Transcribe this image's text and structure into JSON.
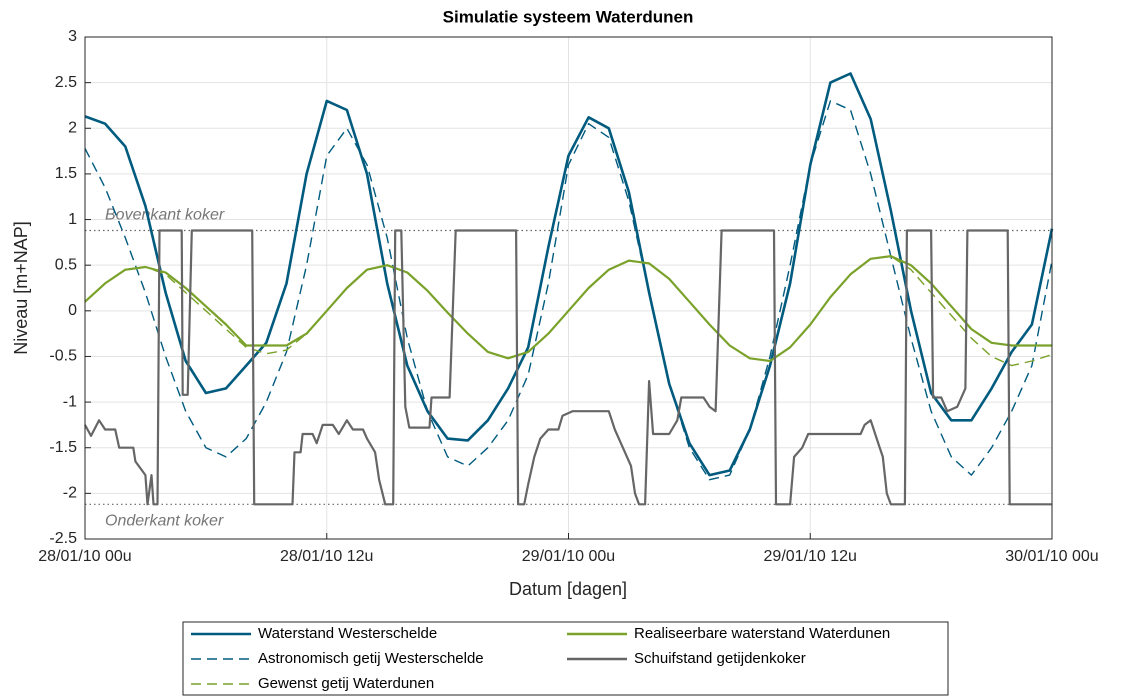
{
  "chart_data": {
    "type": "line",
    "title": "Simulatie systeem Waterdunen",
    "xlabel": "Datum [dagen]",
    "ylabel": "Niveau [m+NAP]",
    "xlim": [
      0,
      48
    ],
    "xticks": [
      {
        "value": 0,
        "label": "28/01/10 00u"
      },
      {
        "value": 12,
        "label": "28/01/10 12u"
      },
      {
        "value": 24,
        "label": "29/01/10 00u"
      },
      {
        "value": 36,
        "label": "29/01/10 12u"
      },
      {
        "value": 48,
        "label": "30/01/10 00u"
      }
    ],
    "ylim": [
      -2.5,
      3
    ],
    "yticks": [
      -2.5,
      -2,
      -1.5,
      -1,
      -0.5,
      0,
      0.5,
      1,
      1.5,
      2,
      2.5,
      3
    ],
    "grid": true,
    "annotations": [
      {
        "text": "Bovenkant koker",
        "y": 0.88
      },
      {
        "text": "Onderkant koker",
        "y": -2.12
      }
    ],
    "series": [
      {
        "name": "Waterstand Westerschelde",
        "color": "#005b7f",
        "dash": false,
        "x": [
          0,
          1,
          2,
          3,
          4,
          5,
          6,
          7,
          8,
          9,
          10,
          11,
          12,
          13,
          14,
          15,
          16,
          17,
          18,
          19,
          20,
          21,
          22,
          23,
          24,
          25,
          26,
          27,
          28,
          29,
          30,
          31,
          32,
          33,
          34,
          35,
          36,
          37,
          38,
          39,
          40,
          41,
          42,
          43,
          44,
          45,
          46,
          47,
          48
        ],
        "values": [
          2.13,
          2.05,
          1.8,
          1.15,
          0.2,
          -0.55,
          -0.9,
          -0.85,
          -0.6,
          -0.35,
          0.3,
          1.5,
          2.3,
          2.2,
          1.5,
          0.3,
          -0.6,
          -1.1,
          -1.4,
          -1.42,
          -1.2,
          -0.85,
          -0.4,
          0.7,
          1.7,
          2.12,
          2.0,
          1.3,
          0.2,
          -0.8,
          -1.45,
          -1.8,
          -1.75,
          -1.3,
          -0.6,
          0.3,
          1.6,
          2.5,
          2.6,
          2.1,
          1.1,
          0.0,
          -0.9,
          -1.2,
          -1.2,
          -0.85,
          -0.45,
          -0.15,
          0.9
        ]
      },
      {
        "name": "Astronomisch getij Westerschelde",
        "color": "#005b7f",
        "dash": true,
        "x": [
          0,
          1,
          2,
          3,
          4,
          5,
          6,
          7,
          8,
          9,
          10,
          11,
          12,
          13,
          14,
          15,
          16,
          17,
          18,
          19,
          20,
          21,
          22,
          23,
          24,
          25,
          26,
          27,
          28,
          29,
          30,
          31,
          32,
          33,
          34,
          35,
          36,
          37,
          38,
          39,
          40,
          41,
          42,
          43,
          44,
          45,
          46,
          47,
          48
        ],
        "values": [
          1.78,
          1.35,
          0.8,
          0.2,
          -0.5,
          -1.1,
          -1.5,
          -1.6,
          -1.4,
          -1.0,
          -0.45,
          0.5,
          1.7,
          2.0,
          1.6,
          0.8,
          -0.3,
          -1.1,
          -1.6,
          -1.7,
          -1.5,
          -1.2,
          -0.7,
          0.3,
          1.6,
          2.05,
          1.9,
          1.2,
          0.2,
          -0.8,
          -1.5,
          -1.85,
          -1.8,
          -1.3,
          -0.5,
          0.5,
          1.6,
          2.3,
          2.2,
          1.5,
          0.6,
          -0.3,
          -1.1,
          -1.6,
          -1.8,
          -1.5,
          -1.1,
          -0.6,
          0.55
        ]
      },
      {
        "name": "Gewenst getij Waterdunen",
        "color": "#7aa22a",
        "dash": true,
        "x": [
          0,
          1,
          2,
          3,
          4,
          5,
          6,
          7,
          8,
          9,
          10,
          11,
          12,
          13,
          14,
          15,
          16,
          17,
          18,
          19,
          20,
          21,
          22,
          23,
          24,
          25,
          26,
          27,
          28,
          29,
          30,
          31,
          32,
          33,
          34,
          35,
          36,
          37,
          38,
          39,
          40,
          41,
          42,
          43,
          44,
          45,
          46,
          47,
          48
        ],
        "values": [
          0.1,
          0.3,
          0.45,
          0.48,
          0.4,
          0.2,
          0.0,
          -0.2,
          -0.4,
          -0.47,
          -0.43,
          -0.25,
          0.0,
          0.25,
          0.45,
          0.5,
          0.42,
          0.22,
          -0.02,
          -0.25,
          -0.45,
          -0.52,
          -0.45,
          -0.25,
          0.0,
          0.25,
          0.45,
          0.55,
          0.52,
          0.35,
          0.1,
          -0.15,
          -0.38,
          -0.52,
          -0.55,
          -0.4,
          -0.15,
          0.15,
          0.4,
          0.57,
          0.6,
          0.45,
          0.2,
          -0.05,
          -0.3,
          -0.5,
          -0.6,
          -0.55,
          -0.48
        ]
      },
      {
        "name": "Realiseerbare waterstand Waterdunen",
        "color": "#7aa22a",
        "dash": false,
        "x": [
          0,
          1,
          2,
          3,
          4,
          5,
          6,
          7,
          8,
          9,
          10,
          11,
          12,
          13,
          14,
          15,
          16,
          17,
          18,
          19,
          20,
          21,
          22,
          23,
          24,
          25,
          26,
          27,
          28,
          29,
          30,
          31,
          32,
          33,
          34,
          35,
          36,
          37,
          38,
          39,
          40,
          41,
          42,
          43,
          44,
          45,
          46,
          47,
          48
        ],
        "values": [
          0.1,
          0.3,
          0.45,
          0.48,
          0.42,
          0.25,
          0.05,
          -0.15,
          -0.38,
          -0.38,
          -0.38,
          -0.25,
          0.0,
          0.25,
          0.45,
          0.5,
          0.42,
          0.22,
          -0.02,
          -0.25,
          -0.45,
          -0.52,
          -0.45,
          -0.25,
          0.0,
          0.25,
          0.45,
          0.55,
          0.52,
          0.35,
          0.1,
          -0.15,
          -0.38,
          -0.52,
          -0.55,
          -0.4,
          -0.15,
          0.15,
          0.4,
          0.57,
          0.6,
          0.5,
          0.3,
          0.05,
          -0.2,
          -0.35,
          -0.38,
          -0.38,
          -0.38
        ]
      },
      {
        "name": "Schuifstand getijdenkoker",
        "color": "#666666",
        "dash": false,
        "x": [
          0,
          0.3,
          0.7,
          1.0,
          1.5,
          1.7,
          2.4,
          2.5,
          3.0,
          3.1,
          3.3,
          3.4,
          3.6,
          3.7,
          4.8,
          4.85,
          5.1,
          5.3,
          8.3,
          8.4,
          10.3,
          10.4,
          10.7,
          10.8,
          11.3,
          11.5,
          11.8,
          12.3,
          12.6,
          13.0,
          13.3,
          13.8,
          14.0,
          14.4,
          14.6,
          14.9,
          15.3,
          15.4,
          15.7,
          15.9,
          16.1,
          17.1,
          17.2,
          18.1,
          18.4,
          21.4,
          21.5,
          21.8,
          22.0,
          22.3,
          22.6,
          23.0,
          23.5,
          23.7,
          24.2,
          26.0,
          26.3,
          26.7,
          27.1,
          27.3,
          27.5,
          27.8,
          28.0,
          28.2,
          29.0,
          29.4,
          29.6,
          30.7,
          31.0,
          31.3,
          31.6,
          34.2,
          34.3,
          35.0,
          35.2,
          35.6,
          35.9,
          38.5,
          38.7,
          39.0,
          39.3,
          39.6,
          39.8,
          40.0,
          40.7,
          40.8,
          42.0,
          42.1,
          42.5,
          42.8,
          43.3,
          43.7,
          43.8,
          45.8,
          45.9,
          48
        ],
        "values": [
          -1.25,
          -1.37,
          -1.2,
          -1.3,
          -1.3,
          -1.5,
          -1.5,
          -1.65,
          -1.8,
          -2.12,
          -1.8,
          -2.12,
          -2.12,
          0.88,
          0.88,
          -0.92,
          -0.92,
          0.88,
          0.88,
          -2.12,
          -2.12,
          -1.55,
          -1.55,
          -1.35,
          -1.35,
          -1.45,
          -1.25,
          -1.25,
          -1.35,
          -1.2,
          -1.3,
          -1.3,
          -1.4,
          -1.55,
          -1.85,
          -2.12,
          -2.12,
          0.88,
          0.88,
          -1.05,
          -1.28,
          -1.28,
          -0.95,
          -0.95,
          0.88,
          0.88,
          -2.12,
          -2.12,
          -1.9,
          -1.6,
          -1.4,
          -1.3,
          -1.3,
          -1.15,
          -1.1,
          -1.1,
          -1.3,
          -1.5,
          -1.7,
          -2.0,
          -2.12,
          -2.12,
          -0.77,
          -1.35,
          -1.35,
          -1.2,
          -0.95,
          -0.95,
          -1.05,
          -1.1,
          0.88,
          0.88,
          -2.12,
          -2.12,
          -1.6,
          -1.5,
          -1.35,
          -1.35,
          -1.25,
          -1.2,
          -1.4,
          -1.6,
          -2.0,
          -2.12,
          -2.12,
          0.88,
          0.88,
          -0.95,
          -0.95,
          -1.1,
          -1.05,
          -0.85,
          0.88,
          0.88,
          -2.12,
          -2.12
        ]
      }
    ]
  }
}
